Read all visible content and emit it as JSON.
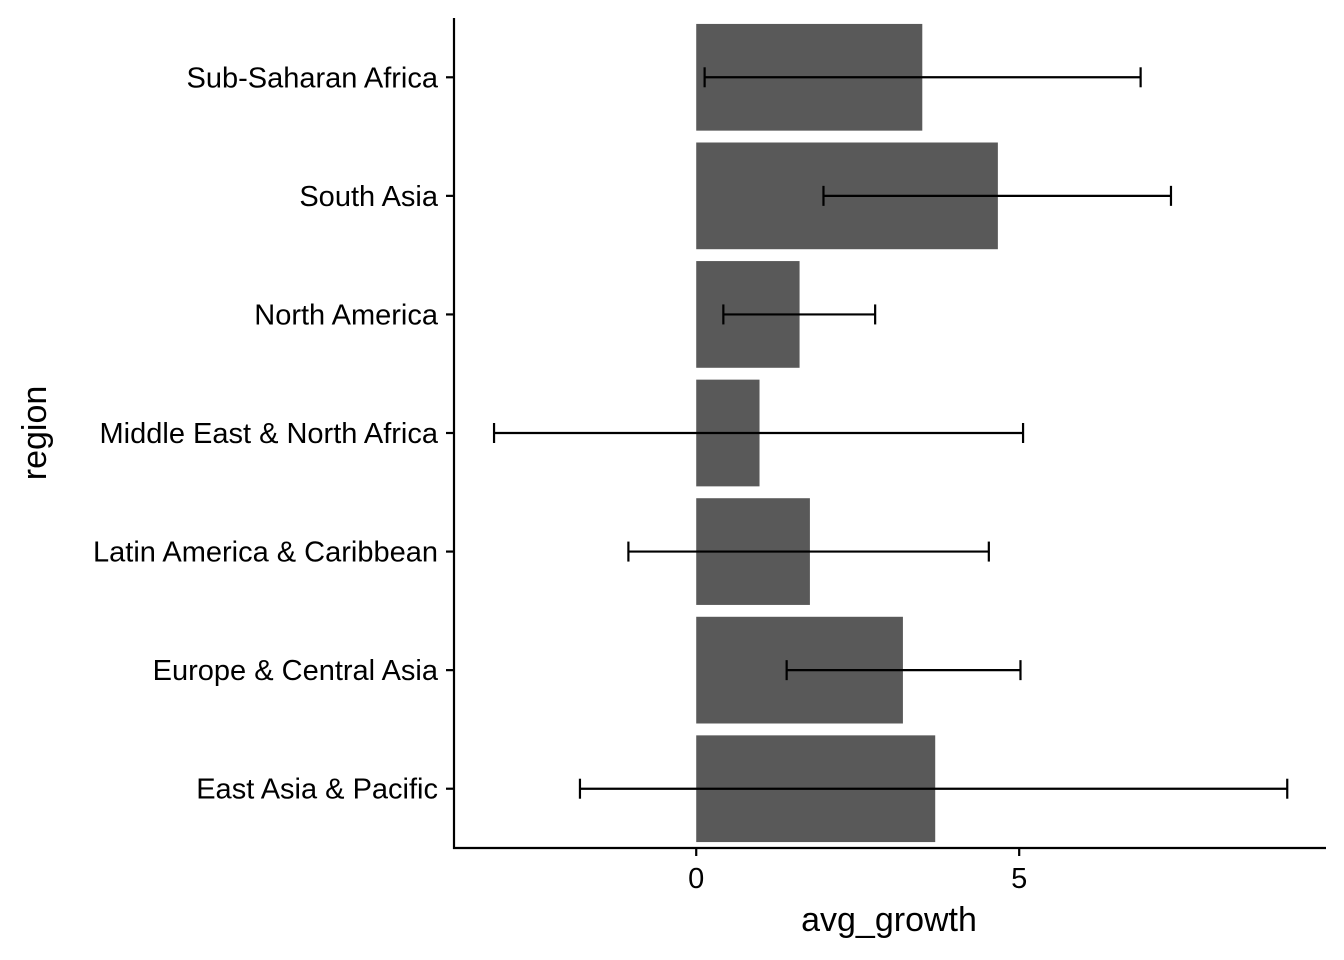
{
  "chart_data": {
    "type": "bar",
    "orientation": "horizontal",
    "xlabel": "avg_growth",
    "ylabel": "region",
    "xlim": [
      -3.75,
      9.75
    ],
    "x_ticks": [
      0,
      5
    ],
    "categories": [
      "East Asia & Pacific",
      "Europe & Central Asia",
      "Latin America & Caribbean",
      "Middle East & North Africa",
      "North America",
      "South Asia",
      "Sub-Saharan Africa"
    ],
    "values": [
      3.7,
      3.2,
      1.76,
      0.98,
      1.6,
      4.67,
      3.5
    ],
    "error_bars": [
      {
        "low": -1.8,
        "high": 9.15
      },
      {
        "low": 1.4,
        "high": 5.02
      },
      {
        "low": -1.05,
        "high": 4.53
      },
      {
        "low": -3.13,
        "high": 5.06
      },
      {
        "low": 0.42,
        "high": 2.77
      },
      {
        "low": 1.97,
        "high": 7.35
      },
      {
        "low": 0.13,
        "high": 6.88
      }
    ],
    "colors": {
      "bar": "#595959",
      "errorbar": "#000000",
      "axis": "#000000"
    },
    "grid": false,
    "legend": "none"
  }
}
